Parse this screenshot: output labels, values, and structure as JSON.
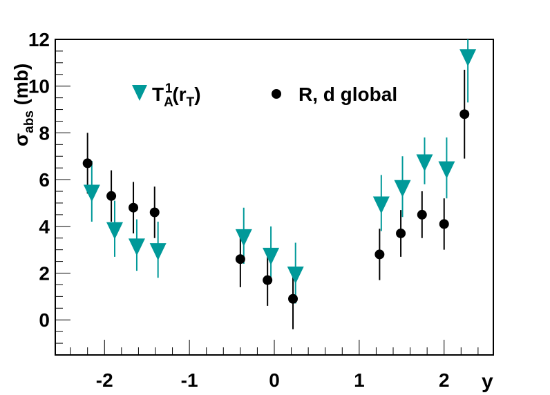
{
  "chart_data": {
    "type": "scatter",
    "title": "",
    "xlabel": "y",
    "ylabel": "σabs (mb)",
    "xlim": [
      -2.58,
      2.58
    ],
    "ylim": [
      -1.5,
      12
    ],
    "x_ticks": [
      -2,
      -1,
      0,
      1,
      2
    ],
    "x_tick_labels": [
      "-2",
      "-1",
      "0",
      "1",
      "2"
    ],
    "y_ticks": [
      0,
      2,
      4,
      6,
      8,
      10,
      12
    ],
    "y_tick_labels": [
      "0",
      "2",
      "4",
      "6",
      "8",
      "10",
      "12"
    ],
    "grid": false,
    "legend_placement": "top",
    "series": [
      {
        "name": "T_A^1(r_T)",
        "marker": "triangle-down",
        "color": "#009999",
        "points": [
          {
            "x": -2.15,
            "y": 5.5,
            "err": 1.3
          },
          {
            "x": -1.88,
            "y": 3.9,
            "err": 1.2
          },
          {
            "x": -1.62,
            "y": 3.2,
            "err": 1.1
          },
          {
            "x": -1.37,
            "y": 3.0,
            "err": 1.2
          },
          {
            "x": -0.36,
            "y": 3.6,
            "err": 1.2
          },
          {
            "x": -0.04,
            "y": 2.8,
            "err": 1.2
          },
          {
            "x": 0.25,
            "y": 2.0,
            "err": 1.3
          },
          {
            "x": 1.26,
            "y": 5.0,
            "err": 1.2
          },
          {
            "x": 1.51,
            "y": 5.7,
            "err": 1.3
          },
          {
            "x": 1.77,
            "y": 6.8,
            "err": 1.0
          },
          {
            "x": 2.03,
            "y": 6.5,
            "err": 1.3
          },
          {
            "x": 2.28,
            "y": 11.3,
            "err": 2.0
          }
        ]
      },
      {
        "name": "R, d global",
        "marker": "circle",
        "color": "#000000",
        "points": [
          {
            "x": -2.2,
            "y": 6.7,
            "err": 1.3
          },
          {
            "x": -1.92,
            "y": 5.3,
            "err": 1.1
          },
          {
            "x": -1.66,
            "y": 4.8,
            "err": 1.1
          },
          {
            "x": -1.41,
            "y": 4.6,
            "err": 1.1
          },
          {
            "x": -0.4,
            "y": 2.6,
            "err": 1.2
          },
          {
            "x": -0.08,
            "y": 1.7,
            "err": 1.1
          },
          {
            "x": 0.22,
            "y": 0.9,
            "err": 1.3
          },
          {
            "x": 1.24,
            "y": 2.8,
            "err": 1.1
          },
          {
            "x": 1.49,
            "y": 3.7,
            "err": 1.0
          },
          {
            "x": 1.74,
            "y": 4.5,
            "err": 1.0
          },
          {
            "x": 2.0,
            "y": 4.1,
            "err": 1.1
          },
          {
            "x": 2.24,
            "y": 8.8,
            "err": 1.9
          }
        ]
      }
    ]
  }
}
